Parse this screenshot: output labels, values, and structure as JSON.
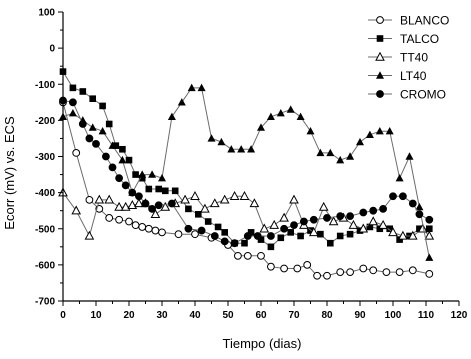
{
  "chart_data": {
    "type": "line",
    "title": "",
    "xlabel": "Tiempo (dias)",
    "ylabel": "Ecorr (mV) vs. ECS",
    "xlim": [
      0,
      120
    ],
    "ylim": [
      -700,
      100
    ],
    "xticks": [
      0,
      10,
      20,
      30,
      40,
      50,
      60,
      70,
      80,
      90,
      100,
      110,
      120
    ],
    "yticks": [
      100,
      0,
      -100,
      -200,
      -300,
      -400,
      -500,
      -600,
      -700
    ],
    "grid": false,
    "legend_position": "top-right",
    "series": [
      {
        "name": "BLANCO",
        "marker": "circle-open",
        "x": [
          0,
          4,
          8,
          11,
          14,
          17,
          20,
          22,
          24,
          26,
          28,
          30,
          35,
          40,
          45,
          50,
          53,
          56,
          60,
          63,
          67,
          71,
          74,
          77,
          80,
          84,
          87,
          91,
          94,
          98,
          102,
          106,
          111
        ],
        "y": [
          -150,
          -290,
          -420,
          -445,
          -470,
          -475,
          -480,
          -490,
          -495,
          -500,
          -505,
          -510,
          -515,
          -515,
          -525,
          -545,
          -575,
          -575,
          -575,
          -605,
          -610,
          -610,
          -600,
          -630,
          -630,
          -620,
          -620,
          -610,
          -615,
          -620,
          -620,
          -615,
          -625
        ]
      },
      {
        "name": "TALCO",
        "marker": "square-filled",
        "x": [
          0,
          3,
          6,
          9,
          12,
          14,
          16,
          18,
          20,
          22,
          24,
          26,
          29,
          31,
          34,
          38,
          41,
          44,
          47,
          49,
          52,
          55,
          57,
          60,
          63,
          66,
          69,
          72,
          75,
          78,
          81,
          84,
          87,
          90,
          93,
          96,
          99,
          102,
          105,
          108,
          111
        ],
        "y": [
          -65,
          -110,
          -120,
          -140,
          -160,
          -210,
          -270,
          -280,
          -310,
          -350,
          -360,
          -390,
          -390,
          -395,
          -395,
          -445,
          -460,
          -480,
          -495,
          -510,
          -540,
          -540,
          -510,
          -530,
          -550,
          -525,
          -510,
          -520,
          -505,
          -515,
          -540,
          -520,
          -515,
          -505,
          -495,
          -500,
          -500,
          -530,
          -520,
          -500,
          -500
        ]
      },
      {
        "name": "TT40",
        "marker": "triangle-open",
        "x": [
          0,
          4,
          8,
          11,
          14,
          17,
          19,
          21,
          23,
          25,
          28,
          31,
          34,
          37,
          40,
          43,
          46,
          49,
          52,
          55,
          58,
          61,
          64,
          67,
          70,
          73,
          76,
          79,
          82,
          85,
          88,
          91,
          94,
          97,
          100,
          103,
          106,
          109,
          111
        ],
        "y": [
          -400,
          -450,
          -520,
          -420,
          -420,
          -440,
          -440,
          -435,
          -430,
          -430,
          -460,
          -440,
          -430,
          -420,
          -410,
          -445,
          -430,
          -420,
          -410,
          -410,
          -430,
          -500,
          -490,
          -470,
          -420,
          -490,
          -510,
          -440,
          -480,
          -470,
          -490,
          -500,
          -480,
          -490,
          -510,
          -520,
          -520,
          -500,
          -520
        ]
      },
      {
        "name": "LT40",
        "marker": "triangle-filled",
        "x": [
          0,
          3,
          6,
          9,
          12,
          15,
          18,
          21,
          24,
          27,
          30,
          33,
          36,
          39,
          42,
          45,
          48,
          51,
          54,
          57,
          60,
          63,
          66,
          69,
          72,
          75,
          78,
          81,
          84,
          87,
          90,
          93,
          96,
          99,
          102,
          105,
          108,
          111
        ],
        "y": [
          -190,
          -180,
          -200,
          -220,
          -230,
          -270,
          -310,
          -400,
          -350,
          -350,
          -360,
          -190,
          -150,
          -110,
          -110,
          -250,
          -260,
          -280,
          -280,
          -280,
          -220,
          -190,
          -180,
          -170,
          -190,
          -230,
          -290,
          -290,
          -310,
          -300,
          -260,
          -240,
          -230,
          -230,
          -360,
          -300,
          -440,
          -580
        ]
      },
      {
        "name": "CROMO",
        "marker": "circle-filled",
        "x": [
          0,
          3,
          6,
          8,
          10,
          13,
          15,
          17,
          19,
          21,
          23,
          25,
          27,
          29,
          33,
          38,
          42,
          46,
          49,
          52,
          56,
          59,
          63,
          67,
          70,
          73,
          76,
          80,
          84,
          87,
          91,
          94,
          97,
          100,
          103,
          106,
          108,
          111
        ],
        "y": [
          -145,
          -150,
          -210,
          -250,
          -265,
          -300,
          -330,
          -360,
          -380,
          -400,
          -410,
          -430,
          -445,
          -435,
          -430,
          -500,
          -505,
          -520,
          -535,
          -540,
          -520,
          -520,
          -520,
          -500,
          -490,
          -480,
          -475,
          -470,
          -465,
          -465,
          -455,
          -450,
          -445,
          -410,
          -410,
          -430,
          -460,
          -475
        ]
      }
    ]
  },
  "colors": {
    "background": "#ffffff",
    "axis": "#000000",
    "series_line": "#6b6b6b"
  }
}
